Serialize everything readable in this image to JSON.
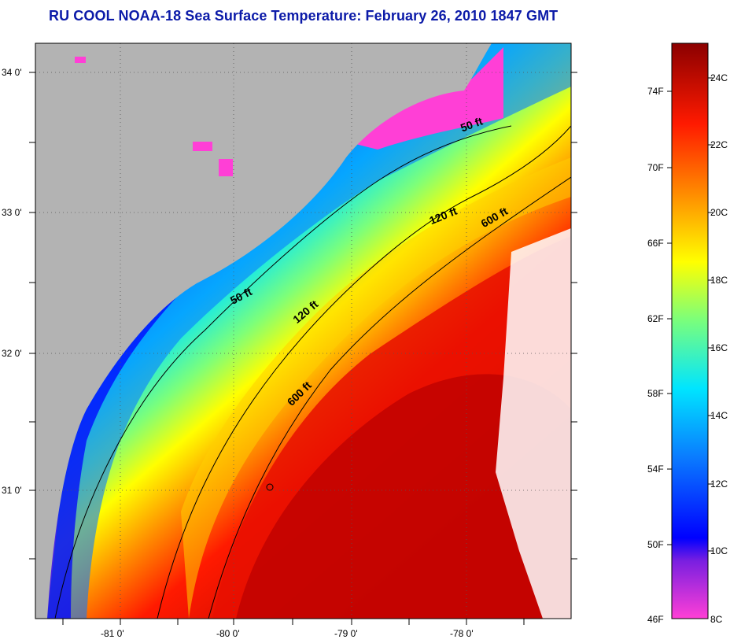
{
  "title": "RU COOL  NOAA-18  Sea Surface Temperature:  February 26, 2010 1847 GMT",
  "lat_labels": [
    "34 0'",
    "33 0'",
    "32 0'",
    "31 0'"
  ],
  "lon_labels": [
    "-81 0'",
    "-80 0'",
    "-79 0'",
    "-78 0'"
  ],
  "contours": [
    "50 ft",
    "50 ft",
    "120 ft",
    "120 ft",
    "600 ft",
    "600 ft"
  ],
  "colorbar": {
    "fahrenheit": [
      "74F",
      "70F",
      "66F",
      "62F",
      "58F",
      "54F",
      "50F",
      "46F"
    ],
    "celsius": [
      "24C",
      "22C",
      "20C",
      "18C",
      "16C",
      "14C",
      "12C",
      "10C",
      "8C"
    ]
  },
  "colors": {
    "land": "#b3b3b3",
    "title": "#0b1aa8",
    "scale": [
      "#ff3fd6",
      "#7a1fe0",
      "#0000ff",
      "#0a7bff",
      "#00e5ff",
      "#7cff7a",
      "#ffff00",
      "#ff8a00",
      "#ff1a00",
      "#8b0000"
    ]
  }
}
